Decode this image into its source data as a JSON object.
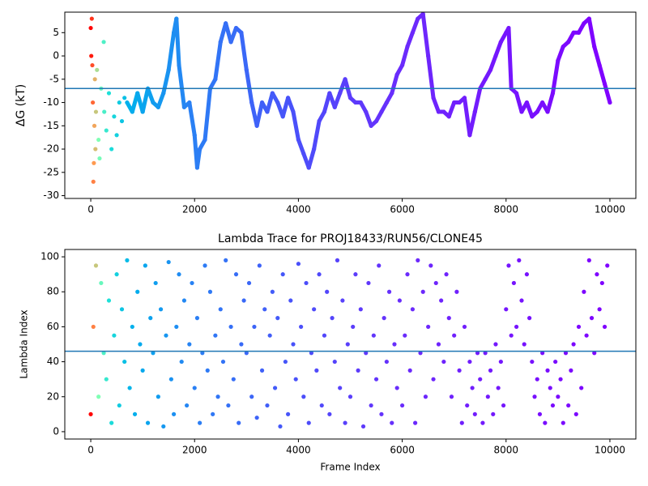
{
  "chart_data": [
    {
      "type": "scatter",
      "ylabel": "ΔG (kT)",
      "x": [
        0,
        10,
        20,
        30,
        40,
        50,
        60,
        70,
        80,
        90,
        100,
        120,
        150,
        170,
        200,
        250,
        260,
        300,
        350,
        400,
        450,
        500,
        550,
        600,
        650,
        700,
        800,
        900,
        1000,
        1100,
        1200,
        1300,
        1400,
        1500,
        1600,
        1650,
        1700,
        1800,
        1900,
        2000,
        2050,
        2100,
        2200,
        2300,
        2400,
        2500,
        2600,
        2700,
        2800,
        2900,
        3000,
        3100,
        3200,
        3300,
        3400,
        3500,
        3600,
        3700,
        3800,
        3900,
        4000,
        4100,
        4200,
        4300,
        4400,
        4500,
        4600,
        4700,
        4800,
        4900,
        5000,
        5100,
        5200,
        5300,
        5400,
        5500,
        5600,
        5700,
        5800,
        5900,
        6000,
        6100,
        6200,
        6300,
        6400,
        6500,
        6600,
        6700,
        6800,
        6900,
        7000,
        7100,
        7200,
        7300,
        7400,
        7500,
        7600,
        7700,
        7800,
        7900,
        8000,
        8050,
        8100,
        8200,
        8300,
        8400,
        8500,
        8600,
        8700,
        8800,
        8900,
        9000,
        9100,
        9200,
        9300,
        9400,
        9500,
        9600,
        9700,
        9800,
        9900,
        10000
      ],
      "values": [
        6,
        0,
        8,
        -2,
        -10,
        -27,
        -23,
        -15,
        -5,
        -20,
        -12,
        -3,
        -18,
        -22,
        -7,
        3,
        -12,
        -16,
        -8,
        -20,
        -13,
        -17,
        -10,
        -14,
        -9,
        -10,
        -12,
        -8,
        -12,
        -7,
        -10,
        -11,
        -8,
        -3,
        5,
        8,
        -2,
        -11,
        -10,
        -17,
        -24,
        -20,
        -18,
        -7,
        -5,
        3,
        7,
        3,
        6,
        5,
        -3,
        -10,
        -15,
        -10,
        -12,
        -8,
        -10,
        -13,
        -9,
        -12,
        -18,
        -21,
        -24,
        -20,
        -14,
        -12,
        -8,
        -11,
        -8,
        -5,
        -9,
        -10,
        -10,
        -12,
        -15,
        -14,
        -12,
        -10,
        -8,
        -4,
        -2,
        2,
        5,
        8,
        9,
        0,
        -9,
        -12,
        -12,
        -13,
        -10,
        -10,
        -9,
        -17,
        -12,
        -7,
        -5,
        -3,
        0,
        3,
        5,
        6,
        -7,
        -8,
        -12,
        -10,
        -13,
        -12,
        -10,
        -12,
        -8,
        -1,
        2,
        3,
        5,
        5,
        7,
        8,
        2,
        -2,
        -6,
        -10
      ],
      "xlim": [
        -500,
        10500
      ],
      "xticks": [
        0,
        2000,
        4000,
        6000,
        8000,
        10000
      ],
      "ylim": [
        -30.6,
        9.4
      ],
      "yticks": [
        -30,
        -25,
        -20,
        -15,
        -10,
        -5,
        0,
        5
      ],
      "hline": -7,
      "hline_color": "#1f77b4",
      "connect_from": 700,
      "colormap": [
        {
          "at": 0,
          "color": "#ff0000"
        },
        {
          "at": 60,
          "color": "#ff9a50"
        },
        {
          "at": 150,
          "color": "#80ffb4"
        },
        {
          "at": 350,
          "color": "#1ee0d8"
        },
        {
          "at": 800,
          "color": "#00b0ec"
        },
        {
          "at": 2000,
          "color": "#2a80f4"
        },
        {
          "at": 4000,
          "color": "#4a50fa"
        },
        {
          "at": 6000,
          "color": "#6a2cfc"
        },
        {
          "at": 10000,
          "color": "#8000ff"
        }
      ]
    },
    {
      "type": "scatter",
      "title": "Lambda Trace for PROJ18433/RUN56/CLONE45",
      "xlabel": "Frame Index",
      "ylabel": "Lambda Index",
      "x": [
        0,
        50,
        100,
        150,
        200,
        250,
        300,
        350,
        400,
        450,
        500,
        550,
        600,
        650,
        700,
        750,
        800,
        850,
        900,
        950,
        1000,
        1050,
        1100,
        1150,
        1200,
        1250,
        1300,
        1350,
        1400,
        1450,
        1500,
        1550,
        1600,
        1650,
        1700,
        1750,
        1800,
        1850,
        1900,
        1950,
        2000,
        2050,
        2100,
        2150,
        2200,
        2250,
        2300,
        2350,
        2400,
        2450,
        2500,
        2550,
        2600,
        2650,
        2700,
        2750,
        2800,
        2850,
        2900,
        2950,
        3000,
        3050,
        3100,
        3150,
        3200,
        3250,
        3300,
        3350,
        3400,
        3450,
        3500,
        3550,
        3600,
        3650,
        3700,
        3750,
        3800,
        3850,
        3900,
        3950,
        4000,
        4050,
        4100,
        4150,
        4200,
        4250,
        4300,
        4350,
        4400,
        4450,
        4500,
        4550,
        4600,
        4650,
        4700,
        4750,
        4800,
        4850,
        4900,
        4950,
        5000,
        5050,
        5100,
        5150,
        5200,
        5250,
        5300,
        5350,
        5400,
        5450,
        5500,
        5550,
        5600,
        5650,
        5700,
        5750,
        5800,
        5850,
        5900,
        5950,
        6000,
        6050,
        6100,
        6150,
        6200,
        6250,
        6300,
        6350,
        6400,
        6450,
        6500,
        6550,
        6600,
        6650,
        6700,
        6750,
        6800,
        6850,
        6900,
        6950,
        7000,
        7050,
        7100,
        7150,
        7200,
        7250,
        7300,
        7350,
        7400,
        7450,
        7500,
        7550,
        7600,
        7650,
        7700,
        7750,
        7800,
        7850,
        7900,
        7950,
        8000,
        8050,
        8100,
        8150,
        8200,
        8250,
        8300,
        8350,
        8400,
        8450,
        8500,
        8550,
        8600,
        8650,
        8700,
        8750,
        8800,
        8850,
        8900,
        8950,
        9000,
        9050,
        9100,
        9150,
        9200,
        9250,
        9300,
        9350,
        9400,
        9450,
        9500,
        9550,
        9600,
        9650,
        9700,
        9750,
        9800,
        9850,
        9900,
        9950
      ],
      "values": [
        10,
        60,
        95,
        20,
        85,
        45,
        30,
        75,
        5,
        55,
        90,
        15,
        70,
        40,
        98,
        25,
        60,
        10,
        80,
        50,
        35,
        95,
        5,
        65,
        45,
        85,
        20,
        70,
        3,
        55,
        97,
        30,
        10,
        60,
        90,
        40,
        75,
        15,
        50,
        85,
        25,
        65,
        5,
        45,
        95,
        35,
        80,
        10,
        55,
        20,
        70,
        40,
        98,
        15,
        60,
        30,
        90,
        5,
        50,
        75,
        45,
        85,
        20,
        60,
        8,
        95,
        35,
        70,
        15,
        55,
        80,
        25,
        65,
        3,
        90,
        40,
        10,
        75,
        50,
        30,
        96,
        60,
        20,
        85,
        5,
        45,
        70,
        35,
        90,
        15,
        55,
        80,
        10,
        65,
        40,
        98,
        25,
        75,
        5,
        50,
        20,
        60,
        90,
        35,
        70,
        3,
        45,
        85,
        15,
        55,
        30,
        95,
        10,
        65,
        40,
        80,
        5,
        50,
        25,
        75,
        15,
        55,
        90,
        35,
        70,
        5,
        98,
        45,
        80,
        20,
        60,
        95,
        30,
        85,
        50,
        75,
        40,
        90,
        65,
        20,
        55,
        80,
        35,
        5,
        60,
        15,
        40,
        25,
        10,
        45,
        30,
        5,
        45,
        20,
        35,
        10,
        50,
        25,
        40,
        15,
        70,
        95,
        55,
        85,
        60,
        98,
        75,
        50,
        90,
        65,
        40,
        20,
        30,
        10,
        45,
        5,
        35,
        25,
        15,
        40,
        20,
        30,
        5,
        45,
        15,
        35,
        50,
        10,
        60,
        25,
        80,
        55,
        98,
        65,
        45,
        90,
        70,
        85,
        60,
        95
      ],
      "xlim": [
        -500,
        10500
      ],
      "xticks": [
        0,
        2000,
        4000,
        6000,
        8000,
        10000
      ],
      "ylim": [
        -4.2,
        104.2
      ],
      "yticks": [
        0,
        20,
        40,
        60,
        80,
        100
      ],
      "hline": 46,
      "hline_color": "#1f77b4",
      "colormap": [
        {
          "at": 0,
          "color": "#ff0000"
        },
        {
          "at": 60,
          "color": "#ff9a50"
        },
        {
          "at": 150,
          "color": "#80ffb4"
        },
        {
          "at": 350,
          "color": "#1ee0d8"
        },
        {
          "at": 800,
          "color": "#00b0ec"
        },
        {
          "at": 2000,
          "color": "#2a80f4"
        },
        {
          "at": 4000,
          "color": "#4a50fa"
        },
        {
          "at": 6000,
          "color": "#6a2cfc"
        },
        {
          "at": 10000,
          "color": "#8000ff"
        }
      ]
    }
  ]
}
